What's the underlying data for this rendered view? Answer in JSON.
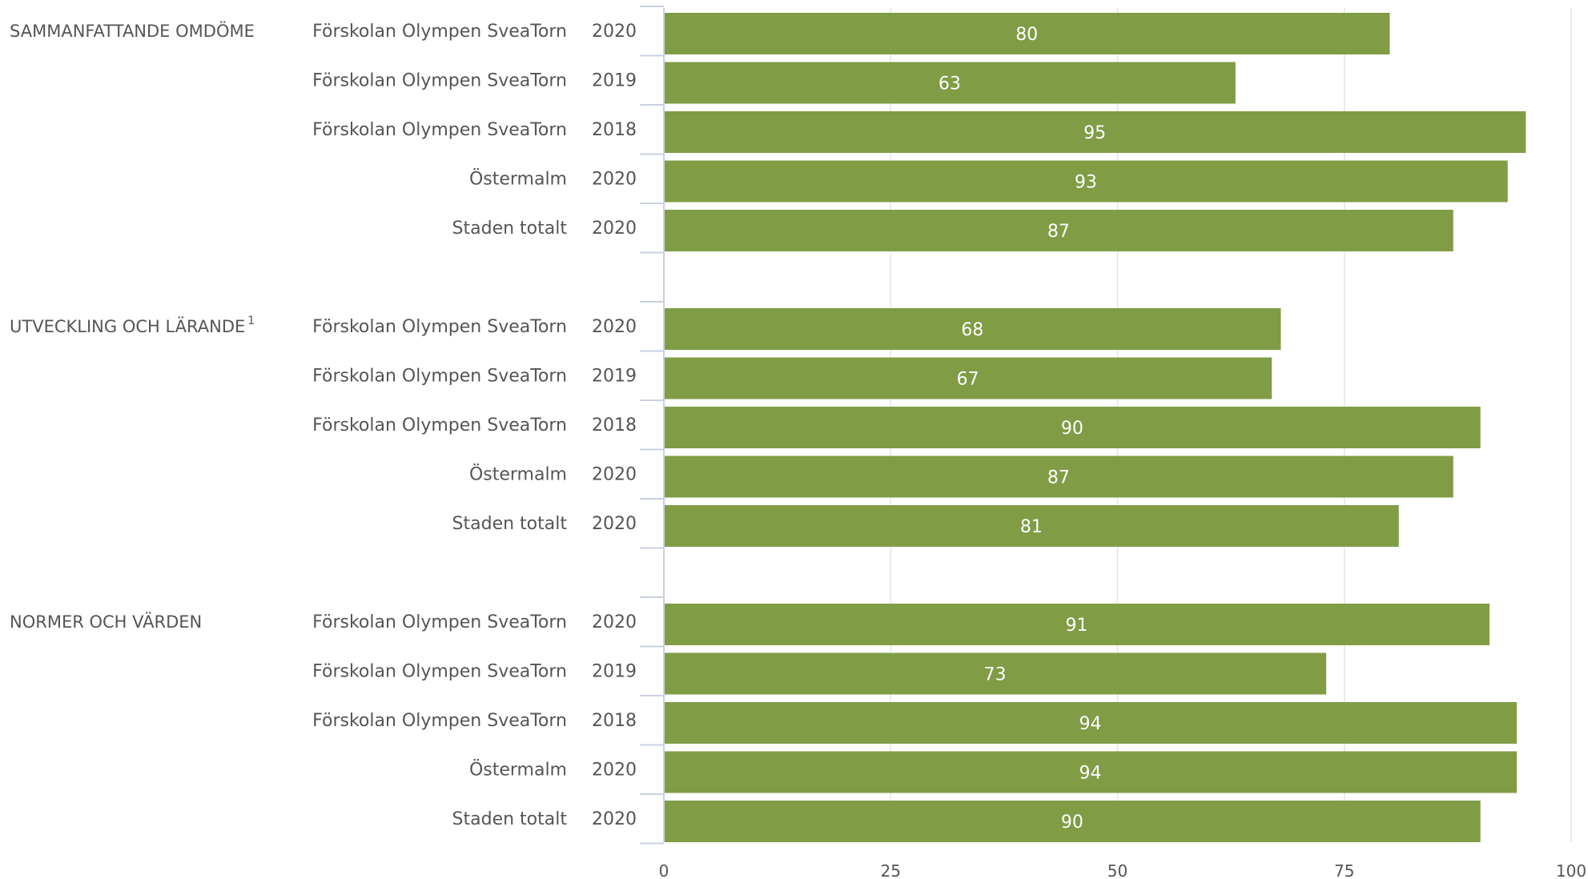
{
  "chart_data": {
    "type": "bar",
    "orientation": "horizontal",
    "xlim": [
      0,
      100
    ],
    "xticks": [
      "0",
      "25",
      "50",
      "75",
      "100"
    ],
    "grid": true,
    "bar_color": "#809c45",
    "groups": [
      {
        "label": "SAMMANFATTANDE OMDÖME",
        "footnote": "",
        "rows": [
          {
            "name": "Förskolan Olympen SveaTorn",
            "year": "2020",
            "value": 80
          },
          {
            "name": "Förskolan Olympen SveaTorn",
            "year": "2019",
            "value": 63
          },
          {
            "name": "Förskolan Olympen SveaTorn",
            "year": "2018",
            "value": 95
          },
          {
            "name": "Östermalm",
            "year": "2020",
            "value": 93
          },
          {
            "name": "Staden totalt",
            "year": "2020",
            "value": 87
          }
        ]
      },
      {
        "label": "UTVECKLING OCH LÄRANDE",
        "footnote": "1",
        "rows": [
          {
            "name": "Förskolan Olympen SveaTorn",
            "year": "2020",
            "value": 68
          },
          {
            "name": "Förskolan Olympen SveaTorn",
            "year": "2019",
            "value": 67
          },
          {
            "name": "Förskolan Olympen SveaTorn",
            "year": "2018",
            "value": 90
          },
          {
            "name": "Östermalm",
            "year": "2020",
            "value": 87
          },
          {
            "name": "Staden totalt",
            "year": "2020",
            "value": 81
          }
        ]
      },
      {
        "label": "NORMER OCH VÄRDEN",
        "footnote": "",
        "rows": [
          {
            "name": "Förskolan Olympen SveaTorn",
            "year": "2020",
            "value": 91
          },
          {
            "name": "Förskolan Olympen SveaTorn",
            "year": "2019",
            "value": 73
          },
          {
            "name": "Förskolan Olympen SveaTorn",
            "year": "2018",
            "value": 94
          },
          {
            "name": "Östermalm",
            "year": "2020",
            "value": 94
          },
          {
            "name": "Staden totalt",
            "year": "2020",
            "value": 90
          }
        ]
      }
    ]
  }
}
